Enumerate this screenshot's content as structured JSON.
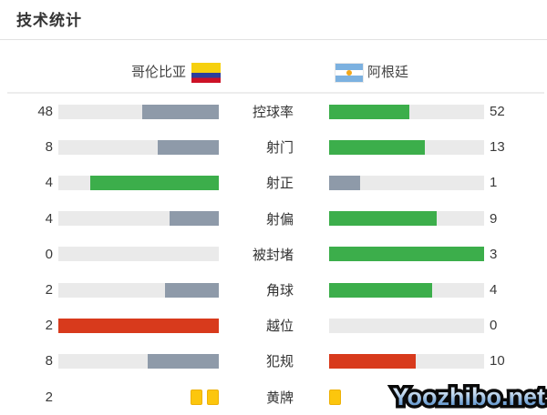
{
  "title": "技术统计",
  "teams": {
    "left": {
      "name": "哥伦比亚",
      "flag": "colombia-flag"
    },
    "right": {
      "name": "阿根廷",
      "flag": "argentina-flag"
    }
  },
  "colors": {
    "green": "#3cae4b",
    "gray": "#8e9aa9",
    "red": "#d83a1c",
    "track": "#eaeaea",
    "yellow_card": "#fcc60d"
  },
  "stats": {
    "rows": [
      {
        "label": "控球率",
        "left": {
          "value": "48",
          "color": "gray",
          "pct": 48
        },
        "right": {
          "value": "52",
          "color": "green",
          "pct": 52
        }
      },
      {
        "label": "射门",
        "left": {
          "value": "8",
          "color": "gray",
          "pct": 38.1
        },
        "right": {
          "value": "13",
          "color": "green",
          "pct": 61.9
        }
      },
      {
        "label": "射正",
        "left": {
          "value": "4",
          "color": "green",
          "pct": 80
        },
        "right": {
          "value": "1",
          "color": "gray",
          "pct": 20
        }
      },
      {
        "label": "射偏",
        "left": {
          "value": "4",
          "color": "gray",
          "pct": 30.8
        },
        "right": {
          "value": "9",
          "color": "green",
          "pct": 69.2
        }
      },
      {
        "label": "被封堵",
        "left": {
          "value": "0",
          "color": "gray",
          "pct": 0
        },
        "right": {
          "value": "3",
          "color": "green",
          "pct": 100
        }
      },
      {
        "label": "角球",
        "left": {
          "value": "2",
          "color": "gray",
          "pct": 33.3
        },
        "right": {
          "value": "4",
          "color": "green",
          "pct": 66.7
        }
      },
      {
        "label": "越位",
        "left": {
          "value": "2",
          "color": "red",
          "pct": 100
        },
        "right": {
          "value": "0",
          "color": "gray",
          "pct": 0
        }
      },
      {
        "label": "犯规",
        "left": {
          "value": "8",
          "color": "gray",
          "pct": 44.4
        },
        "right": {
          "value": "10",
          "color": "red",
          "pct": 55.6
        }
      },
      {
        "label": "黄牌",
        "type": "cards",
        "left": {
          "value": "2",
          "cards": 2
        },
        "right": {
          "value": "1",
          "cards": 1
        }
      }
    ]
  },
  "watermark": "Yoozhibo.net",
  "chart_data": {
    "type": "bar",
    "subtype": "paired-horizontal-comparison",
    "title": "技术统计",
    "categories": [
      "控球率",
      "射门",
      "射正",
      "射偏",
      "被封堵",
      "角球",
      "越位",
      "犯规",
      "黄牌"
    ],
    "series": [
      {
        "name": "哥伦比亚",
        "values": [
          48,
          8,
          4,
          4,
          0,
          2,
          2,
          8,
          2
        ]
      },
      {
        "name": "阿根廷",
        "values": [
          52,
          13,
          1,
          9,
          3,
          4,
          0,
          10,
          1
        ]
      }
    ],
    "bar_fill_rule": "value / (left+right) of each row, anchored toward center labels",
    "highlight_rule": "leader bar green; leader in negative stats (越位, 犯规) red; trailing bar gray; 黄牌 row drawn as yellow card icons",
    "legend_position": "top",
    "grid": false
  }
}
